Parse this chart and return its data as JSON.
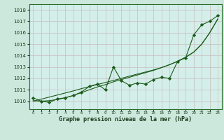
{
  "title": "Graphe pression niveau de la mer (hPa)",
  "fig_bg_color": "#cce8dd",
  "plot_bg_color": "#d4eeea",
  "grid_color": "#c8bebe",
  "line_color": "#1a5c1a",
  "x_values": [
    0,
    1,
    2,
    3,
    4,
    5,
    6,
    7,
    8,
    9,
    10,
    11,
    12,
    13,
    14,
    15,
    16,
    17,
    18,
    19,
    20,
    21,
    22,
    23
  ],
  "y_noisy": [
    1010.3,
    1010.0,
    1009.9,
    1010.2,
    1010.3,
    1010.5,
    1010.8,
    1011.3,
    1011.5,
    1011.0,
    1013.0,
    1011.8,
    1011.4,
    1011.6,
    1011.5,
    1011.9,
    1012.1,
    1012.0,
    1013.5,
    1013.8,
    1015.8,
    1016.7,
    1017.0,
    1017.5
  ],
  "y_smooth": [
    1010.05,
    1010.0,
    1010.05,
    1010.15,
    1010.3,
    1010.5,
    1010.75,
    1011.0,
    1011.25,
    1011.45,
    1011.7,
    1011.9,
    1012.1,
    1012.3,
    1012.5,
    1012.7,
    1012.95,
    1013.2,
    1013.5,
    1013.85,
    1014.3,
    1015.0,
    1016.0,
    1017.2
  ],
  "y_linear": [
    1010.0,
    1010.18,
    1010.36,
    1010.54,
    1010.72,
    1010.9,
    1011.1,
    1011.28,
    1011.46,
    1011.64,
    1011.82,
    1012.0,
    1012.2,
    1012.38,
    1012.56,
    1012.74,
    1012.95,
    1013.2,
    1013.5,
    1013.85,
    1014.3,
    1015.0,
    1016.0,
    1017.2
  ],
  "ylim": [
    1009.3,
    1018.5
  ],
  "xlim": [
    -0.5,
    23.5
  ],
  "yticks": [
    1010,
    1011,
    1012,
    1013,
    1014,
    1015,
    1016,
    1017,
    1018
  ],
  "xticks": [
    0,
    1,
    2,
    3,
    4,
    5,
    6,
    7,
    8,
    9,
    10,
    11,
    12,
    13,
    14,
    15,
    16,
    17,
    18,
    19,
    20,
    21,
    22,
    23
  ],
  "marker": "D",
  "marker_size": 2.2,
  "line_width": 0.8
}
